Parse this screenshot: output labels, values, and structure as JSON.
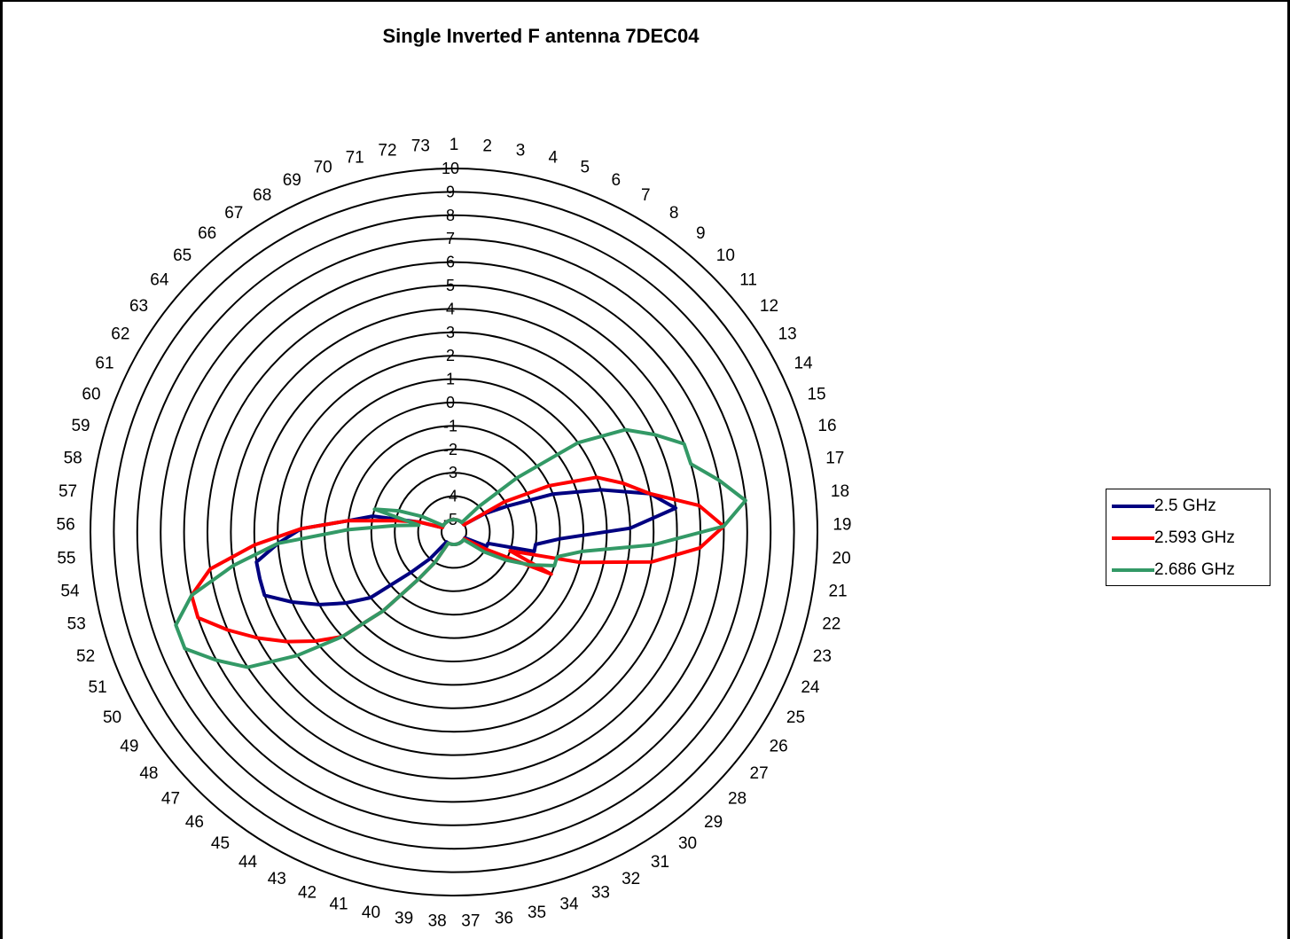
{
  "chart_data": {
    "type": "radar",
    "title": "Single Inverted F antenna 7DEC04",
    "radial_axis": {
      "min": -5,
      "max": 10,
      "step": 1,
      "tick_labels": [
        "-5",
        "-4",
        "-3",
        "-2",
        "-1",
        "0",
        "1",
        "2",
        "3",
        "4",
        "5",
        "6",
        "7",
        "8",
        "9",
        "10"
      ]
    },
    "categories": [
      "1",
      "2",
      "3",
      "4",
      "5",
      "6",
      "7",
      "8",
      "9",
      "10",
      "11",
      "12",
      "13",
      "14",
      "15",
      "16",
      "17",
      "18",
      "19",
      "20",
      "21",
      "22",
      "23",
      "24",
      "25",
      "26",
      "27",
      "28",
      "29",
      "30",
      "31",
      "32",
      "33",
      "34",
      "35",
      "36",
      "37",
      "38",
      "39",
      "40",
      "41",
      "42",
      "43",
      "44",
      "45",
      "46",
      "47",
      "48",
      "49",
      "50",
      "51",
      "52",
      "53",
      "54",
      "55",
      "56",
      "57",
      "58",
      "59",
      "60",
      "61",
      "62",
      "63",
      "64",
      "65",
      "66",
      "67",
      "68",
      "69",
      "70",
      "71",
      "72",
      "73"
    ],
    "grid": true,
    "legend_position": "right",
    "series": [
      {
        "name": "2.5 GHz",
        "color": "#000080",
        "values": [
          -5,
          -5,
          -5,
          -5,
          -5,
          -5,
          -5,
          -5,
          -5,
          -5,
          -5,
          -5,
          -4,
          -3,
          -1,
          1,
          3,
          4,
          2,
          -1,
          -2,
          -2,
          -4,
          -4,
          -5,
          -5,
          -5,
          -5,
          -5,
          -5,
          -5,
          -5,
          -5,
          -5,
          -5,
          -5,
          -5,
          -5,
          -5,
          -5,
          -5,
          -5,
          -5,
          -5,
          -5,
          -4,
          -3,
          -1,
          0,
          1,
          2,
          3,
          3,
          3,
          2,
          1,
          -1,
          -2,
          -4,
          -5,
          -5,
          -5,
          -5,
          -5,
          -5,
          -5,
          -5,
          -5,
          -5,
          -5,
          -5,
          -5,
          -5
        ]
      },
      {
        "name": "2.593 GHz",
        "color": "#ff0000",
        "values": [
          -5,
          -5,
          -5,
          -5,
          -5,
          -5,
          -5,
          -5,
          -5,
          -5,
          -5,
          -5,
          -3,
          -1,
          1,
          2,
          3,
          5,
          6,
          5,
          3,
          0,
          -3,
          -1,
          -4,
          -5,
          -5,
          -5,
          -5,
          -5,
          -5,
          -5,
          -5,
          -5,
          -5,
          -5,
          -5,
          -5,
          -5,
          -5,
          -5,
          -5,
          -5,
          -4,
          -3,
          -1,
          1,
          2,
          3,
          4,
          5,
          6,
          6,
          5,
          3,
          1,
          -1,
          -3,
          -4,
          -5,
          -5,
          -5,
          -5,
          -5,
          -5,
          -5,
          -5,
          -5,
          -5,
          -5,
          -5,
          -5,
          -5
        ]
      },
      {
        "name": "2.686 GHz",
        "color": "#339966",
        "values": [
          -5,
          -5,
          -5,
          -5,
          -5,
          -5,
          -5,
          -5,
          -5,
          -4,
          -2,
          1,
          3,
          4,
          5,
          5,
          6,
          7,
          6,
          3,
          0,
          -1,
          -1,
          -2,
          -3,
          -4,
          -5,
          -5,
          -5,
          -5,
          -5,
          -5,
          -5,
          -5,
          -5,
          -5,
          -5,
          -5,
          -5,
          -5,
          -5,
          -5,
          -5,
          -4,
          -3,
          -1,
          1,
          3,
          5,
          6,
          7,
          7,
          6,
          4,
          2,
          -1,
          -3,
          -4,
          -2,
          -3,
          -4,
          -5,
          -5,
          -5,
          -5,
          -5,
          -5,
          -5,
          -5,
          -5,
          -5,
          -5,
          -5
        ]
      }
    ]
  }
}
